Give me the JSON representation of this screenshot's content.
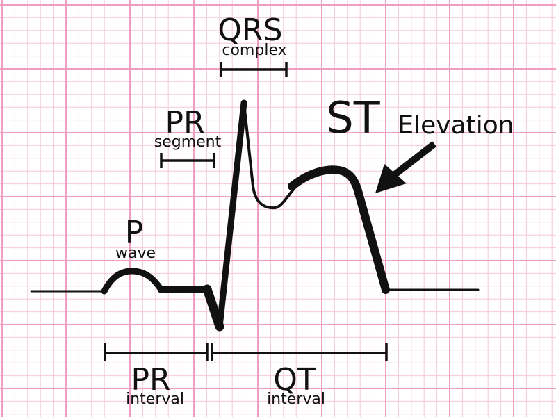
{
  "colors": {
    "grid_minor": "#f6c8dc",
    "grid_major": "#ee9ec0",
    "trace": "#111111",
    "background": "#ffffff"
  },
  "labels": {
    "qrs_title": "QRS",
    "qrs_sub": "complex",
    "pr_seg_title": "PR",
    "pr_seg_sub": "segment",
    "p_title": "P",
    "p_sub": "wave",
    "st_title": "ST",
    "st_sub": "Elevation",
    "pr_int_title": "PR",
    "pr_int_sub": "interval",
    "qt_title": "QT",
    "qt_sub": "interval"
  },
  "icons": {
    "pointer": "arrow-icon"
  }
}
